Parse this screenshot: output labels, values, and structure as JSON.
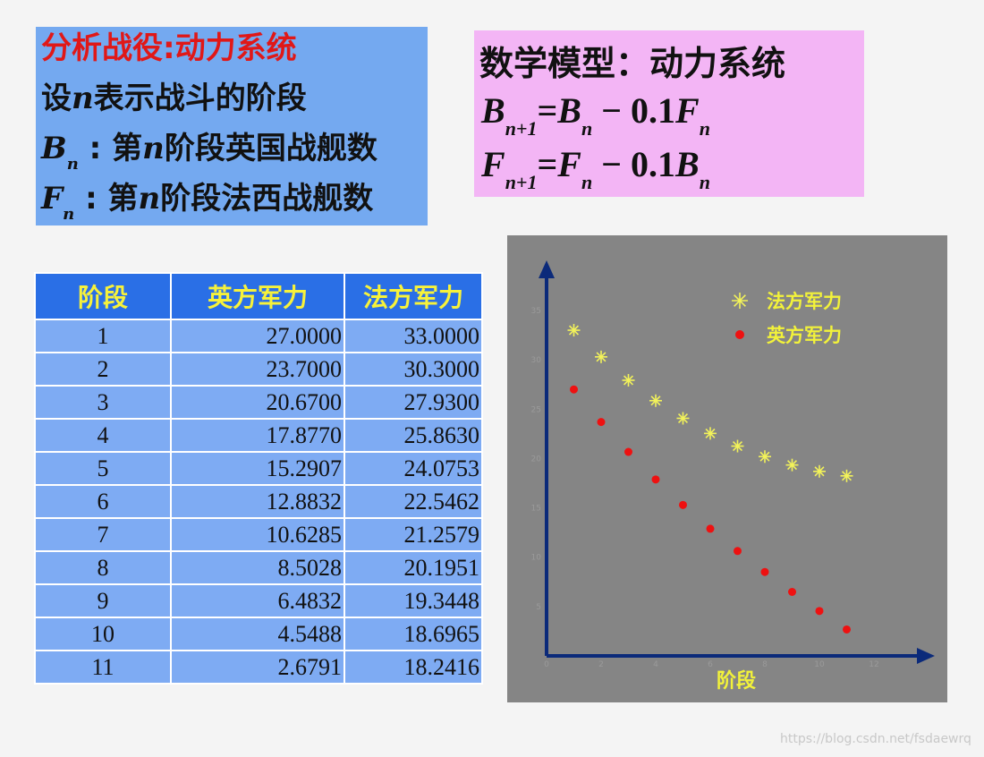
{
  "definitions": {
    "title": "分析战役:动力系统",
    "line1_pre": "设",
    "line1_var": "n",
    "line1_post": "表示战斗的阶段",
    "b_symbol": "B",
    "b_sub": "n",
    "b_desc_pre": " : 第",
    "b_desc_var": "n",
    "b_desc_post": "阶段英国战舰数",
    "f_symbol": "F",
    "f_sub": "n",
    "f_desc_pre": " : 第",
    "f_desc_var": "n",
    "f_desc_post": "阶段法西战舰数"
  },
  "model": {
    "title": "数学模型：动力系统",
    "eq1": {
      "lhs": "B",
      "lhs_sub": "n+1",
      "rhs1": "B",
      "rhs1_sub": "n",
      "op": " − 0.1",
      "rhs2": "F",
      "rhs2_sub": "n"
    },
    "eq2": {
      "lhs": "F",
      "lhs_sub": "n+1",
      "rhs1": "F",
      "rhs1_sub": "n",
      "op": " − 0.1",
      "rhs2": "B",
      "rhs2_sub": "n"
    }
  },
  "table": {
    "headers": [
      "阶段",
      "英方军力",
      "法方军力"
    ],
    "rows": [
      [
        "1",
        "27.0000",
        "33.0000"
      ],
      [
        "2",
        "23.7000",
        "30.3000"
      ],
      [
        "3",
        "20.6700",
        "27.9300"
      ],
      [
        "4",
        "17.8770",
        "25.8630"
      ],
      [
        "5",
        "15.2907",
        "24.0753"
      ],
      [
        "6",
        "12.8832",
        "22.5462"
      ],
      [
        "7",
        "10.6285",
        "21.2579"
      ],
      [
        "8",
        "8.5028",
        "20.1951"
      ],
      [
        "9",
        "6.4832",
        "19.3448"
      ],
      [
        "10",
        "4.5488",
        "18.6965"
      ],
      [
        "11",
        "2.6791",
        "18.2416"
      ]
    ]
  },
  "chart_data": {
    "type": "scatter",
    "xlabel": "阶段",
    "ylabel": "",
    "xlim": [
      0,
      13
    ],
    "ylim": [
      0,
      36
    ],
    "xticks": [
      0,
      2,
      4,
      6,
      8,
      10,
      12
    ],
    "yticks": [
      0,
      5,
      10,
      15,
      20,
      25,
      30,
      35
    ],
    "legend_position": "top-right",
    "x": [
      1,
      2,
      3,
      4,
      5,
      6,
      7,
      8,
      9,
      10,
      11
    ],
    "series": [
      {
        "name": "法方军力",
        "marker": "star",
        "color": "#f2f25a",
        "values": [
          33.0,
          30.3,
          27.93,
          25.863,
          24.0753,
          22.5462,
          21.2579,
          20.1951,
          19.3448,
          18.6965,
          18.2416
        ]
      },
      {
        "name": "英方军力",
        "marker": "dot",
        "color": "#ee1111",
        "values": [
          27.0,
          23.7,
          20.67,
          17.877,
          15.2907,
          12.8832,
          10.6285,
          8.5028,
          6.4832,
          4.5488,
          2.6791
        ]
      }
    ]
  },
  "colors": {
    "axis": "#0b2a7a",
    "label": "#f2f23a",
    "tick": "#9a9a9a"
  },
  "watermark": "https://blog.csdn.net/fsdaewrq"
}
